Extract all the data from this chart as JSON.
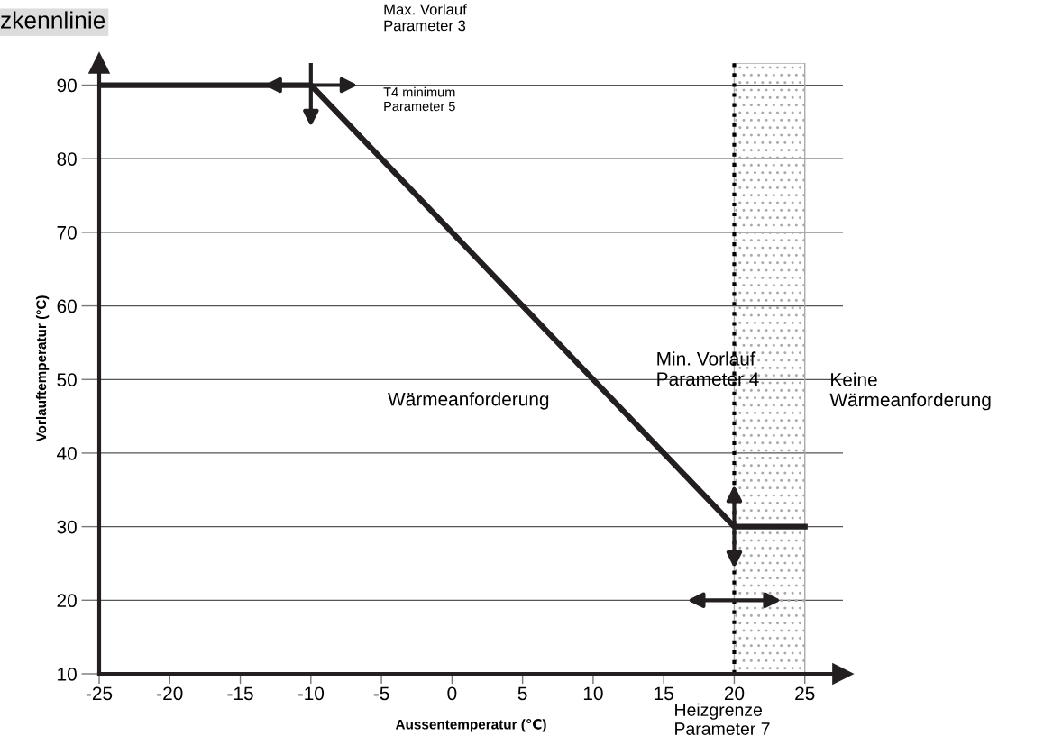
{
  "chart_data": {
    "type": "line",
    "title": "zkennlinie",
    "xlabel": "Aussentemperatur (℃)",
    "ylabel": "Vorlauftemperatur (°C)",
    "x": [
      -25,
      -10,
      20,
      25
    ],
    "series": [
      {
        "color": "#231f20",
        "values": [
          90,
          90,
          30,
          30
        ]
      }
    ],
    "xlim": [
      -25,
      27.7
    ],
    "ylim": [
      10,
      93
    ],
    "xticks": [
      -25,
      -20,
      -15,
      -10,
      -5,
      0,
      5,
      10,
      15,
      20,
      25
    ],
    "yticks": [
      10,
      20,
      30,
      40,
      50,
      60,
      70,
      80,
      90
    ],
    "grid": "y",
    "legend": false,
    "marker": "none",
    "line_style": "solid",
    "ref_lines": [
      {
        "axis": "x",
        "value": 20,
        "color": "#000000",
        "line_style": "dotted"
      }
    ],
    "bands": [
      {
        "axis": "x",
        "from": 20,
        "to": 25,
        "color": "#aaaaaa"
      }
    ],
    "annotations": [
      "Max. Vorlauf\nParameter 3",
      "T4 minimum\nParameter 5",
      "Min. Vorlauf\nParameter 4",
      "Heizgrenze\nParameter 7",
      "Wärmeanforderung",
      "Keine\nWärmeanforderung"
    ]
  }
}
